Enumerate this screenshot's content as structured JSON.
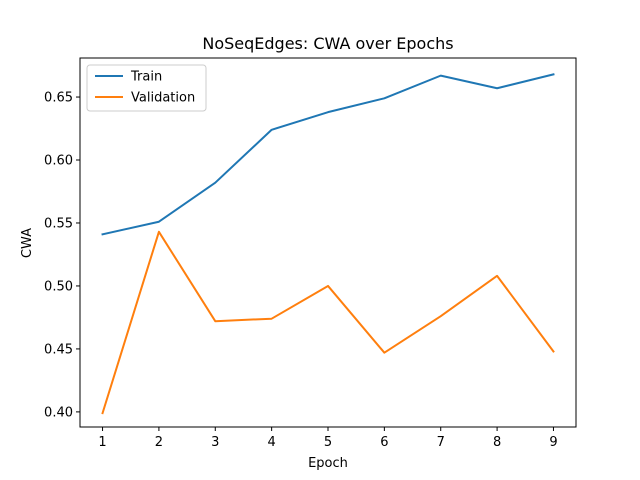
{
  "chart_data": {
    "type": "line",
    "title": "NoSeqEdges: CWA over Epochs",
    "xlabel": "Epoch",
    "ylabel": "CWA",
    "x": [
      1,
      2,
      3,
      4,
      5,
      6,
      7,
      8,
      9
    ],
    "xticks": [
      "1",
      "2",
      "3",
      "4",
      "5",
      "6",
      "7",
      "8",
      "9"
    ],
    "yticks": [
      "0.40",
      "0.45",
      "0.50",
      "0.55",
      "0.60",
      "0.65"
    ],
    "xlim": [
      0.6,
      9.4
    ],
    "ylim": [
      0.388,
      0.681
    ],
    "grid": false,
    "legend_position": "top-left",
    "series": [
      {
        "name": "Train",
        "color": "#1f77b4",
        "values": [
          0.541,
          0.551,
          0.582,
          0.624,
          0.638,
          0.649,
          0.667,
          0.657,
          0.668
        ]
      },
      {
        "name": "Validation",
        "color": "#ff7f0e",
        "values": [
          0.399,
          0.543,
          0.472,
          0.474,
          0.5,
          0.447,
          0.476,
          0.508,
          0.448
        ]
      }
    ]
  }
}
